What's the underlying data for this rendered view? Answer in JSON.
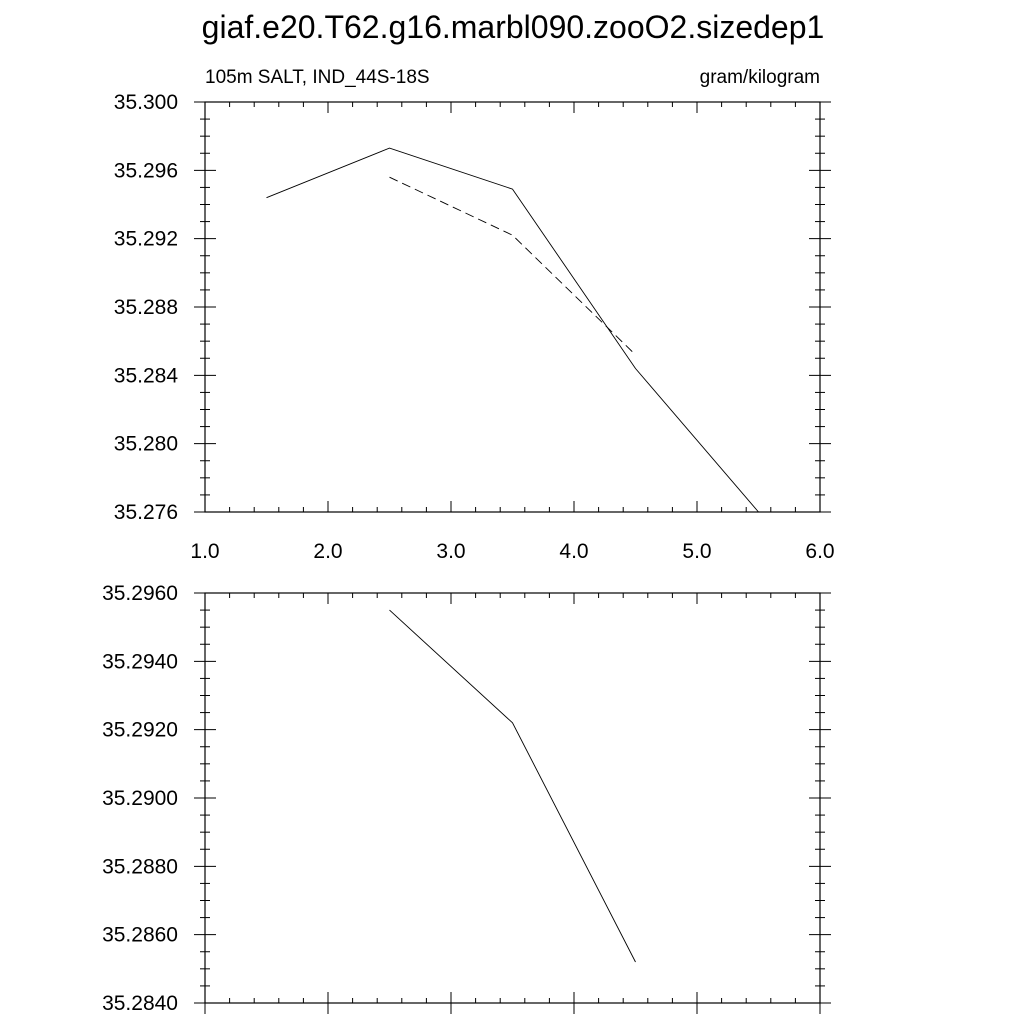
{
  "title": "giaf.e20.T62.g16.marbl090.zooO2.sizedep1",
  "chart_data": [
    {
      "type": "line",
      "left_label": "105m SALT, IND_44S-18S",
      "right_label": "gram/kilogram",
      "xlim": [
        1.0,
        6.0
      ],
      "ylim": [
        35.276,
        35.3
      ],
      "x_ticks": [
        1.0,
        2.0,
        3.0,
        4.0,
        5.0,
        6.0
      ],
      "x_tick_labels": [
        "1.0",
        "2.0",
        "3.0",
        "4.0",
        "5.0",
        "6.0"
      ],
      "y_ticks": [
        35.276,
        35.28,
        35.284,
        35.288,
        35.292,
        35.296,
        35.3
      ],
      "y_tick_labels": [
        "35.276",
        "35.280",
        "35.284",
        "35.288",
        "35.292",
        "35.296",
        "35.300"
      ],
      "grid": false,
      "series": [
        {
          "style": "solid",
          "x": [
            1.5,
            2.5,
            3.5,
            4.5,
            5.5
          ],
          "y": [
            35.2944,
            35.2973,
            35.2949,
            35.2844,
            35.276
          ]
        },
        {
          "style": "dashed",
          "x": [
            2.5,
            3.5,
            4.5
          ],
          "y": [
            35.2956,
            35.2922,
            35.2852
          ]
        }
      ]
    },
    {
      "type": "line",
      "xlim": [
        1.0,
        6.0
      ],
      "ylim": [
        35.284,
        35.296
      ],
      "x_ticks": [
        1.0,
        2.0,
        3.0,
        4.0,
        5.0,
        6.0
      ],
      "y_ticks": [
        35.284,
        35.286,
        35.288,
        35.29,
        35.292,
        35.294,
        35.296
      ],
      "y_tick_labels": [
        "35.2840",
        "35.2860",
        "35.2880",
        "35.2900",
        "35.2920",
        "35.2940",
        "35.2960"
      ],
      "grid": false,
      "series": [
        {
          "style": "solid",
          "x": [
            2.5,
            3.5,
            4.5
          ],
          "y": [
            35.2955,
            35.2922,
            35.2852
          ]
        }
      ]
    }
  ]
}
